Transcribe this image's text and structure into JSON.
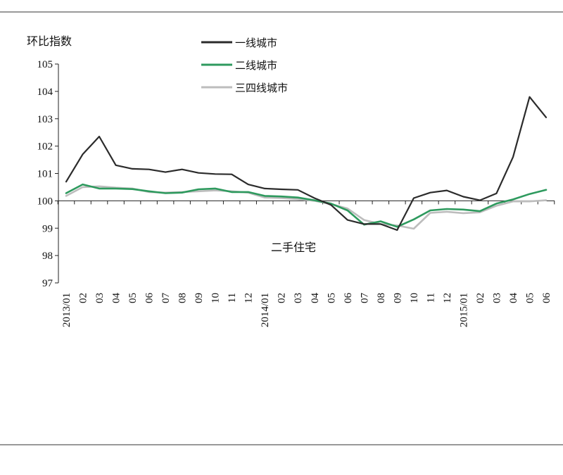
{
  "chart_data": {
    "type": "line",
    "ylabel": "环比指数",
    "annotation": "二手住宅",
    "ylim": [
      97,
      105
    ],
    "yticks": [
      97,
      98,
      99,
      100,
      101,
      102,
      103,
      104,
      105
    ],
    "baseline": 100,
    "categories": [
      "2013/01",
      "02",
      "03",
      "04",
      "05",
      "06",
      "07",
      "08",
      "09",
      "10",
      "11",
      "12",
      "2014/01",
      "02",
      "03",
      "04",
      "05",
      "06",
      "07",
      "08",
      "09",
      "10",
      "11",
      "12",
      "2015/01",
      "02",
      "03",
      "04",
      "05",
      "06"
    ],
    "series": [
      {
        "name": "一线城市",
        "color": "#2b2b2b",
        "values": [
          100.7,
          101.7,
          102.35,
          101.3,
          101.17,
          101.15,
          101.05,
          101.15,
          101.02,
          100.98,
          100.97,
          100.6,
          100.45,
          100.42,
          100.4,
          100.1,
          99.85,
          99.3,
          99.15,
          99.15,
          98.93,
          100.1,
          100.3,
          100.38,
          100.15,
          100.02,
          100.27,
          101.6,
          103.8,
          103.05
        ]
      },
      {
        "name": "二线城市",
        "color": "#2e9a5e",
        "values": [
          100.28,
          100.6,
          100.45,
          100.45,
          100.43,
          100.35,
          100.28,
          100.3,
          100.42,
          100.45,
          100.32,
          100.32,
          100.18,
          100.16,
          100.12,
          100.02,
          99.9,
          99.65,
          99.13,
          99.25,
          99.05,
          99.32,
          99.65,
          99.7,
          99.68,
          99.62,
          99.9,
          100.05,
          100.25,
          100.4
        ]
      },
      {
        "name": "三四线城市",
        "color": "#bdbdbd",
        "values": [
          100.18,
          100.5,
          100.53,
          100.48,
          100.45,
          100.32,
          100.3,
          100.32,
          100.35,
          100.38,
          100.35,
          100.3,
          100.12,
          100.1,
          100.06,
          100.0,
          99.88,
          99.72,
          99.3,
          99.15,
          99.1,
          98.98,
          99.56,
          99.6,
          99.55,
          99.58,
          99.82,
          99.98,
          99.98,
          100.02
        ]
      }
    ]
  }
}
